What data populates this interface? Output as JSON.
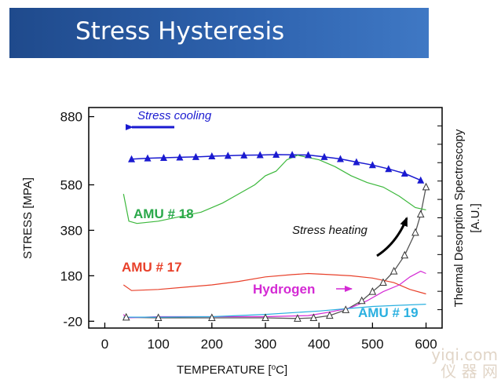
{
  "slide": {
    "title": "Stress Hysteresis"
  },
  "watermark": {
    "line1": "yiqi.com",
    "line2": "仪 器 网"
  },
  "chart_data": {
    "type": "line",
    "xlabel_prefix": "TEMPERATURE [",
    "xlabel_unit": "o",
    "xlabel_suffix": "C]",
    "ylabel": "STRESS [MPA]",
    "y2label_line1": "Thermal Desorption Spectroscopy",
    "y2label_line2": "[A.U.]",
    "xlim": [
      -30,
      630
    ],
    "ylim": [
      -50,
      920
    ],
    "xticks": [
      0,
      100,
      200,
      300,
      400,
      500,
      600
    ],
    "yticks": [
      -20,
      180,
      380,
      580,
      880
    ],
    "annotations": {
      "cooling": "Stress cooling",
      "heating": "Stress heating",
      "amu18": "AMU # 18",
      "amu17": "AMU # 17",
      "hydrogen": "Hydrogen",
      "amu19": "AMU # 19"
    },
    "colors": {
      "cooling": "#1a1ad0",
      "heating": "#555555",
      "amu18": "#3cb83c",
      "amu17": "#e8402a",
      "hydrogen": "#d42ad4",
      "amu19": "#2ab0e0"
    },
    "series": [
      {
        "key": "cooling",
        "x": [
          50,
          80,
          110,
          140,
          170,
          200,
          230,
          260,
          290,
          320,
          350,
          380,
          410,
          440,
          470,
          500,
          530,
          560,
          590
        ],
        "y": [
          693,
          697,
          699,
          701,
          703,
          706,
          708,
          710,
          711,
          713,
          712,
          711,
          703,
          694,
          680,
          667,
          650,
          630,
          600
        ]
      },
      {
        "key": "heating",
        "x": [
          40,
          100,
          200,
          300,
          360,
          390,
          420,
          450,
          480,
          500,
          520,
          540,
          560,
          580,
          590,
          600
        ],
        "y": [
          -3,
          -5,
          -5,
          -5,
          -8,
          -5,
          5,
          30,
          70,
          110,
          150,
          200,
          270,
          370,
          450,
          570
        ]
      },
      {
        "key": "amu18",
        "x": [
          35,
          45,
          60,
          100,
          140,
          180,
          220,
          250,
          280,
          300,
          320,
          340,
          360,
          380,
          400,
          430,
          460,
          490,
          520,
          550,
          580,
          600
        ],
        "y": [
          540,
          420,
          410,
          420,
          440,
          460,
          500,
          540,
          580,
          620,
          640,
          690,
          710,
          700,
          690,
          660,
          620,
          590,
          570,
          530,
          480,
          470
        ]
      },
      {
        "key": "amu17",
        "x": [
          35,
          50,
          100,
          150,
          200,
          250,
          300,
          350,
          380,
          420,
          460,
          500,
          540,
          570,
          600
        ],
        "y": [
          140,
          115,
          120,
          130,
          140,
          155,
          175,
          185,
          190,
          185,
          180,
          170,
          150,
          120,
          100
        ]
      },
      {
        "key": "hydrogen",
        "x": [
          35,
          40,
          100,
          200,
          300,
          380,
          420,
          460,
          490,
          520,
          550,
          570,
          590,
          600
        ],
        "y": [
          10,
          -5,
          0,
          0,
          0,
          5,
          20,
          40,
          70,
          110,
          140,
          175,
          200,
          190
        ]
      },
      {
        "key": "amu19",
        "x": [
          35,
          100,
          200,
          300,
          400,
          450,
          500,
          550,
          600
        ],
        "y": [
          -2,
          -2,
          0,
          10,
          25,
          35,
          45,
          50,
          55
        ]
      }
    ]
  }
}
